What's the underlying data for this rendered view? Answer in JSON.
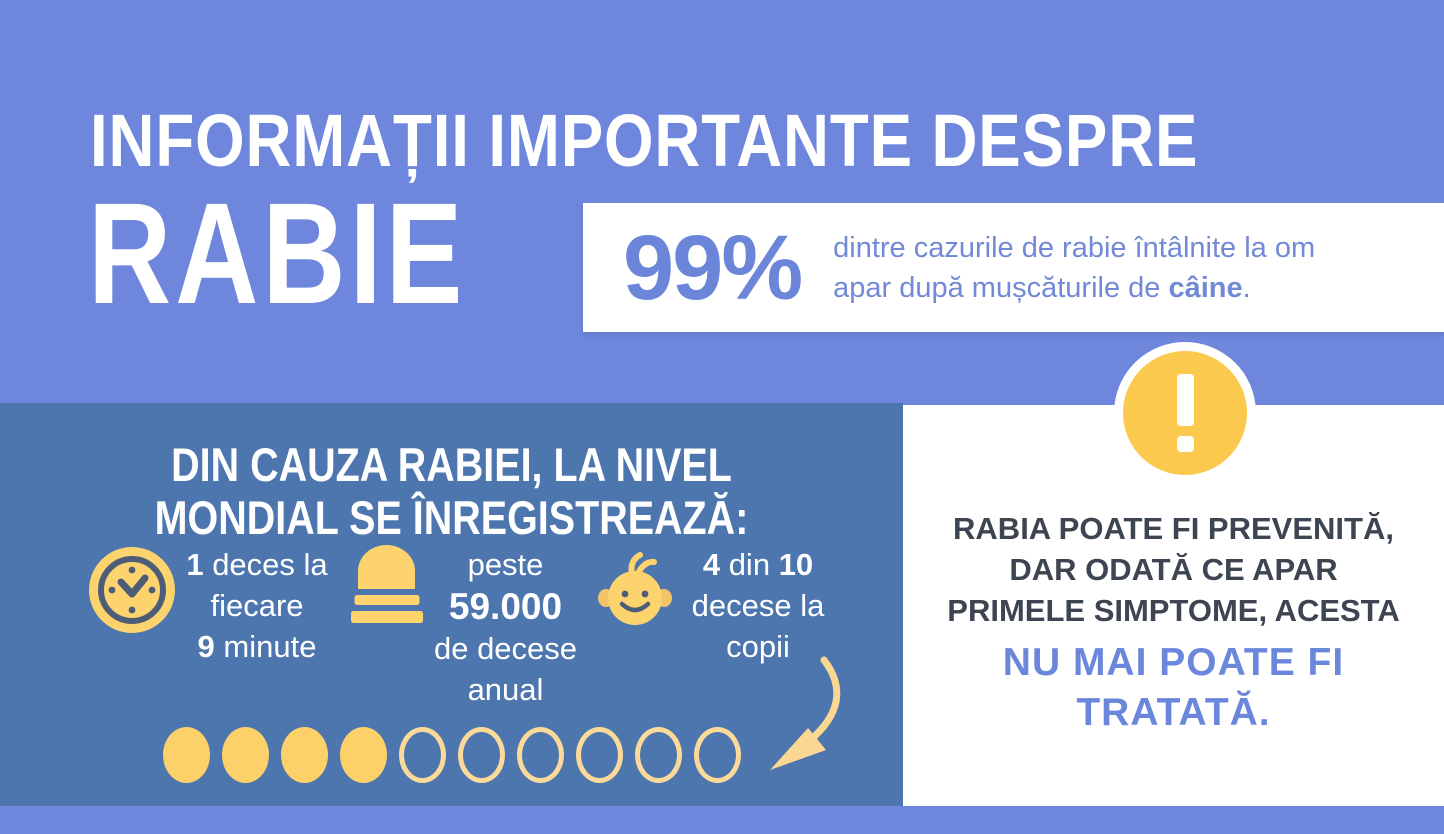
{
  "colors": {
    "background_periwinkle": "#6e87dc",
    "panel_dark_blue": "#4d75ae",
    "icon_yellow": "#fcd36d",
    "circle_yellow": "#fdd169",
    "badge_yellow": "#fbc94d",
    "accent_blue_text": "#6b85d8",
    "dark_text": "#3e4552",
    "white": "#ffffff",
    "icon_dark_detail": "#4d5d77"
  },
  "header": {
    "title_line1": "INFORMAȚII IMPORTANTE DESPRE",
    "title_line2": "RABIE"
  },
  "fact_box": {
    "percentage": "99%",
    "line1": "dintre cazurile de rabie întâlnite la om",
    "line2_prefix": "apar după mușcăturile de ",
    "line2_bold": "câine",
    "line2_suffix": "."
  },
  "stats_panel": {
    "heading_line1": "DIN CAUZA RABIEI, LA NIVEL",
    "heading_line2": "MONDIAL SE ÎNREGISTREAZĂ:",
    "stats": [
      {
        "icon": "clock-icon",
        "num1": "1",
        "rest1": " deces la",
        "line2": "fiecare",
        "num2": "9",
        "rest2": " minute"
      },
      {
        "icon": "tombstone-icon",
        "line1": "peste",
        "big_number": "59.000",
        "line3": "de decese",
        "line4": "anual"
      },
      {
        "icon": "baby-icon",
        "num1": "4",
        "mid": " din ",
        "num2": "10",
        "line2": "decese la",
        "line3": "copii"
      }
    ],
    "pictograph": {
      "filled": 4,
      "empty": 6,
      "total": 10
    }
  },
  "warning_panel": {
    "icon": "exclamation-icon",
    "line1": "RABIA POATE FI PREVENITĂ,",
    "line2": "DAR ODATĂ CE APAR",
    "line3": "PRIMELE SIMPTOME, ACESTA",
    "highlight_line1": "NU MAI POATE FI",
    "highlight_line2": "TRATATĂ."
  }
}
